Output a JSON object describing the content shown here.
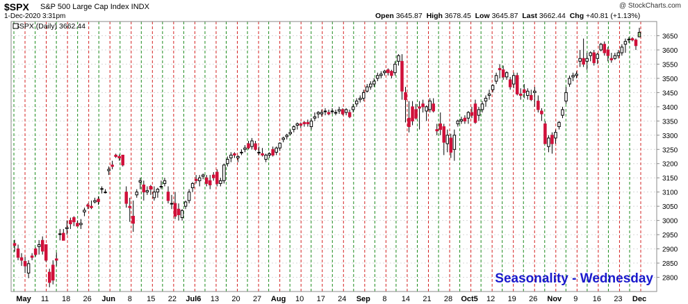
{
  "header": {
    "ticker": "$SPX",
    "description": "S&P 500 Large Cap Index INDX",
    "date": "1-Dec-2020 3:31pm",
    "credit": "@ StockCharts.com",
    "open_label": "Open",
    "open": "3645.87",
    "high_label": "High",
    "high": "3678.45",
    "low_label": "Low",
    "low": "3645.87",
    "last_label": "Last",
    "last": "3662.44",
    "chg_label": "Chg",
    "chg": "+40.81 (+1.13%)"
  },
  "chart_data": {
    "type": "candlestick",
    "legend": "$SPX (Daily) 3662.44",
    "annotation": "Seasonality - Wednesday",
    "ylim": [
      2750,
      3700
    ],
    "y_ticks": [
      2800,
      2850,
      2900,
      2950,
      3000,
      3050,
      3100,
      3150,
      3200,
      3250,
      3300,
      3350,
      3400,
      3450,
      3500,
      3550,
      3600,
      3650
    ],
    "x_tick_labels": [
      "May",
      "11",
      "18",
      "26",
      "Jun",
      "8",
      "15",
      "22",
      "Jul6",
      "13",
      "20",
      "27",
      "Aug",
      "10",
      "17",
      "24",
      "Sep",
      "8",
      "14",
      "21",
      "28",
      "Oct5",
      "12",
      "19",
      "26",
      "Nov",
      "9",
      "16",
      "23",
      "Dec"
    ],
    "colors": {
      "up": "#ffffff",
      "down": "#d0103a",
      "outline": "#000000",
      "green_line": "#1a8a1a",
      "red_line": "#d42020",
      "annotation": "#1a1acc",
      "last_marker": "#a8d890"
    },
    "candles": [
      [
        2919,
        2932,
        2890,
        2912
      ],
      [
        2900,
        2915,
        2860,
        2870
      ],
      [
        2869,
        2885,
        2840,
        2860
      ],
      [
        2856,
        2872,
        2815,
        2840
      ],
      [
        2815,
        2860,
        2797,
        2848
      ],
      [
        2875,
        2885,
        2860,
        2870
      ],
      [
        2900,
        2905,
        2873,
        2880
      ],
      [
        2908,
        2931,
        2880,
        2915
      ],
      [
        2930,
        2944,
        2880,
        2892
      ],
      [
        2915,
        2915,
        2855,
        2860
      ],
      [
        2818,
        2830,
        2765,
        2782
      ],
      [
        2843,
        2860,
        2775,
        2790
      ],
      [
        2865,
        2887,
        2840,
        2860
      ],
      [
        2953,
        2970,
        2930,
        2953
      ],
      [
        2955,
        2970,
        2930,
        2930
      ],
      [
        2971,
        3000,
        2950,
        2975
      ],
      [
        3000,
        3010,
        2970,
        2988
      ],
      [
        3010,
        3015,
        2980,
        2995
      ],
      [
        2990,
        3000,
        2980,
        2980
      ],
      [
        2985,
        3005,
        2970,
        2990
      ],
      [
        3030,
        3045,
        3015,
        3036
      ],
      [
        3055,
        3060,
        3040,
        3050
      ],
      [
        3050,
        3070,
        3040,
        3045
      ],
      [
        3065,
        3080,
        3060,
        3070
      ],
      [
        3075,
        3085,
        3055,
        3066
      ],
      [
        3110,
        3120,
        3095,
        3112
      ],
      [
        3100,
        3110,
        3095,
        3100
      ],
      [
        3175,
        3190,
        3160,
        3180
      ],
      [
        3195,
        3210,
        3180,
        3190
      ],
      [
        3230,
        3235,
        3220,
        3225
      ],
      [
        3225,
        3232,
        3210,
        3220
      ],
      [
        3230,
        3230,
        3190,
        3195
      ],
      [
        3100,
        3120,
        3045,
        3060
      ],
      [
        3050,
        3080,
        2995,
        3045
      ],
      [
        3015,
        3070,
        2960,
        2990
      ],
      [
        3090,
        3110,
        3080,
        3100
      ],
      [
        3135,
        3150,
        3110,
        3140
      ],
      [
        3125,
        3140,
        3070,
        3100
      ],
      [
        3100,
        3120,
        3090,
        3105
      ],
      [
        3120,
        3125,
        3090,
        3110
      ],
      [
        3080,
        3120,
        3070,
        3100
      ],
      [
        3100,
        3115,
        3080,
        3110
      ],
      [
        3120,
        3140,
        3110,
        3120
      ],
      [
        3130,
        3150,
        3120,
        3140
      ],
      [
        3100,
        3120,
        3060,
        3070
      ],
      [
        3060,
        3090,
        3040,
        3060
      ],
      [
        3060,
        3100,
        3005,
        3015
      ],
      [
        3040,
        3060,
        3000,
        3020
      ],
      [
        3010,
        3040,
        3000,
        3035
      ],
      [
        3050,
        3070,
        3040,
        3065
      ],
      [
        3070,
        3110,
        3060,
        3100
      ],
      [
        3115,
        3135,
        3100,
        3130
      ],
      [
        3145,
        3160,
        3130,
        3140
      ],
      [
        3140,
        3160,
        3120,
        3150
      ],
      [
        3155,
        3165,
        3145,
        3160
      ],
      [
        3150,
        3160,
        3120,
        3130
      ],
      [
        3140,
        3160,
        3110,
        3125
      ],
      [
        3160,
        3170,
        3140,
        3150
      ],
      [
        3170,
        3180,
        3120,
        3130
      ],
      [
        3130,
        3150,
        3120,
        3140
      ],
      [
        3140,
        3200,
        3130,
        3195
      ],
      [
        3200,
        3225,
        3190,
        3215
      ],
      [
        3220,
        3240,
        3205,
        3230
      ],
      [
        3235,
        3240,
        3220,
        3230
      ],
      [
        3220,
        3230,
        3205,
        3225
      ],
      [
        3240,
        3250,
        3230,
        3240
      ],
      [
        3250,
        3265,
        3240,
        3255
      ],
      [
        3270,
        3280,
        3250,
        3255
      ],
      [
        3260,
        3290,
        3250,
        3280
      ],
      [
        3270,
        3280,
        3245,
        3250
      ],
      [
        3240,
        3260,
        3230,
        3240
      ],
      [
        3235,
        3255,
        3225,
        3230
      ],
      [
        3215,
        3235,
        3205,
        3230
      ],
      [
        3230,
        3240,
        3220,
        3235
      ],
      [
        3250,
        3260,
        3225,
        3230
      ],
      [
        3240,
        3260,
        3230,
        3255
      ],
      [
        3255,
        3275,
        3245,
        3272
      ],
      [
        3285,
        3295,
        3275,
        3290
      ],
      [
        3295,
        3305,
        3285,
        3300
      ],
      [
        3305,
        3320,
        3300,
        3310
      ],
      [
        3320,
        3335,
        3310,
        3330
      ],
      [
        3335,
        3345,
        3320,
        3340
      ],
      [
        3340,
        3345,
        3325,
        3335
      ],
      [
        3345,
        3350,
        3330,
        3340
      ],
      [
        3345,
        3355,
        3330,
        3340
      ],
      [
        3330,
        3360,
        3320,
        3350
      ],
      [
        3360,
        3380,
        3350,
        3365
      ],
      [
        3375,
        3385,
        3360,
        3380
      ],
      [
        3375,
        3390,
        3365,
        3380
      ],
      [
        3385,
        3395,
        3370,
        3385
      ],
      [
        3380,
        3390,
        3370,
        3375
      ],
      [
        3385,
        3395,
        3375,
        3385
      ],
      [
        3380,
        3390,
        3370,
        3380
      ],
      [
        3385,
        3400,
        3375,
        3390
      ],
      [
        3390,
        3395,
        3370,
        3375
      ],
      [
        3380,
        3395,
        3370,
        3390
      ],
      [
        3380,
        3390,
        3360,
        3365
      ],
      [
        3390,
        3410,
        3380,
        3400
      ],
      [
        3410,
        3430,
        3400,
        3420
      ],
      [
        3425,
        3440,
        3415,
        3430
      ],
      [
        3430,
        3460,
        3420,
        3450
      ],
      [
        3455,
        3480,
        3450,
        3470
      ],
      [
        3470,
        3490,
        3460,
        3480
      ],
      [
        3480,
        3500,
        3470,
        3490
      ],
      [
        3500,
        3520,
        3490,
        3510
      ],
      [
        3510,
        3525,
        3500,
        3515
      ],
      [
        3520,
        3530,
        3510,
        3525
      ],
      [
        3530,
        3535,
        3510,
        3520
      ],
      [
        3525,
        3530,
        3500,
        3510
      ],
      [
        3520,
        3560,
        3510,
        3550
      ],
      [
        3560,
        3585,
        3545,
        3580
      ],
      [
        3560,
        3585,
        3425,
        3455
      ],
      [
        3450,
        3470,
        3345,
        3425
      ],
      [
        3360,
        3420,
        3310,
        3330
      ],
      [
        3400,
        3420,
        3335,
        3350
      ],
      [
        3390,
        3410,
        3355,
        3360
      ],
      [
        3400,
        3420,
        3320,
        3395
      ],
      [
        3410,
        3425,
        3380,
        3400
      ],
      [
        3385,
        3405,
        3350,
        3400
      ],
      [
        3390,
        3430,
        3380,
        3420
      ],
      [
        3410,
        3430,
        3380,
        3385
      ],
      [
        3320,
        3340,
        3300,
        3315
      ],
      [
        3340,
        3380,
        3300,
        3320
      ],
      [
        3330,
        3340,
        3230,
        3275
      ],
      [
        3270,
        3320,
        3240,
        3300
      ],
      [
        3290,
        3305,
        3220,
        3240
      ],
      [
        3250,
        3320,
        3210,
        3300
      ],
      [
        3340,
        3355,
        3330,
        3350
      ],
      [
        3350,
        3365,
        3340,
        3355
      ],
      [
        3360,
        3370,
        3340,
        3350
      ],
      [
        3360,
        3385,
        3340,
        3380
      ],
      [
        3380,
        3400,
        3360,
        3370
      ],
      [
        3410,
        3425,
        3340,
        3345
      ],
      [
        3370,
        3400,
        3350,
        3390
      ],
      [
        3390,
        3420,
        3380,
        3410
      ],
      [
        3420,
        3440,
        3400,
        3430
      ],
      [
        3440,
        3460,
        3425,
        3445
      ],
      [
        3460,
        3480,
        3450,
        3475
      ],
      [
        3490,
        3520,
        3480,
        3510
      ],
      [
        3535,
        3550,
        3500,
        3530
      ],
      [
        3530,
        3545,
        3495,
        3505
      ],
      [
        3505,
        3525,
        3495,
        3520
      ],
      [
        3495,
        3505,
        3460,
        3470
      ],
      [
        3480,
        3520,
        3465,
        3510
      ],
      [
        3510,
        3520,
        3440,
        3445
      ],
      [
        3445,
        3465,
        3425,
        3440
      ],
      [
        3460,
        3480,
        3430,
        3450
      ],
      [
        3440,
        3465,
        3425,
        3455
      ],
      [
        3440,
        3460,
        3420,
        3425
      ],
      [
        3450,
        3470,
        3400,
        3455
      ],
      [
        3420,
        3440,
        3380,
        3390
      ],
      [
        3385,
        3395,
        3350,
        3375
      ],
      [
        3340,
        3350,
        3270,
        3270
      ],
      [
        3260,
        3300,
        3240,
        3290
      ],
      [
        3300,
        3310,
        3235,
        3270
      ],
      [
        3290,
        3320,
        3270,
        3310
      ],
      [
        3330,
        3350,
        3320,
        3345
      ],
      [
        3370,
        3400,
        3360,
        3390
      ],
      [
        3420,
        3470,
        3410,
        3450
      ],
      [
        3480,
        3510,
        3470,
        3500
      ],
      [
        3505,
        3520,
        3490,
        3510
      ],
      [
        3510,
        3525,
        3500,
        3515
      ],
      [
        3560,
        3600,
        3540,
        3570
      ],
      [
        3570,
        3640,
        3540,
        3550
      ],
      [
        3560,
        3590,
        3530,
        3570
      ],
      [
        3580,
        3595,
        3560,
        3590
      ],
      [
        3590,
        3600,
        3545,
        3555
      ],
      [
        3570,
        3590,
        3550,
        3585
      ],
      [
        3600,
        3625,
        3595,
        3620
      ],
      [
        3620,
        3630,
        3580,
        3590
      ],
      [
        3600,
        3610,
        3560,
        3580
      ],
      [
        3570,
        3590,
        3555,
        3565
      ],
      [
        3570,
        3590,
        3565,
        3580
      ],
      [
        3580,
        3600,
        3570,
        3590
      ],
      [
        3590,
        3620,
        3580,
        3610
      ],
      [
        3620,
        3640,
        3590,
        3630
      ],
      [
        3635,
        3645,
        3625,
        3638
      ],
      [
        3640,
        3645,
        3630,
        3635
      ],
      [
        3635,
        3640,
        3600,
        3615
      ],
      [
        3646,
        3678,
        3646,
        3662
      ]
    ]
  }
}
